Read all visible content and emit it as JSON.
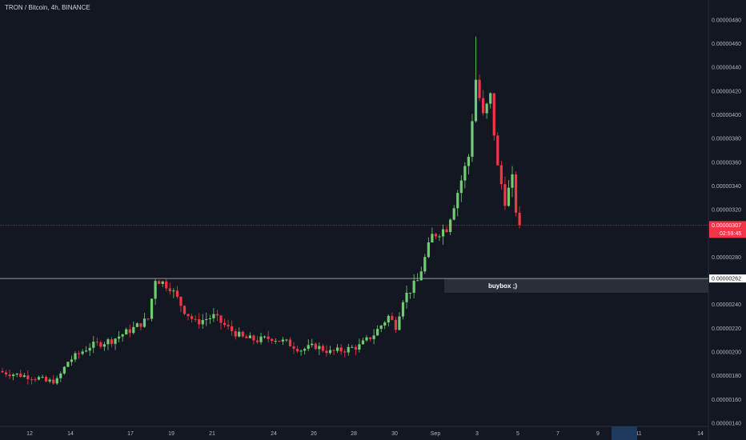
{
  "header": {
    "symbol_title": "TRON / Bitcoin, 4h, BINANCE"
  },
  "colors": {
    "background": "#131722",
    "up": "#6fcc71",
    "down": "#f23645",
    "axis_text": "#b2b5be",
    "grid": "#1c2030",
    "price_line": "#f23645",
    "hline": "#9598a1",
    "zone": "#2a2e39",
    "badge": "#2962ff"
  },
  "chart_data": {
    "type": "candlestick",
    "title": "TRON / Bitcoin, 4h, BINANCE",
    "ylim": [
      1.38e-06,
      4.9e-06
    ],
    "y_ticks": [
      "0.00000140",
      "0.00000160",
      "0.00000180",
      "0.00000200",
      "0.00000220",
      "0.00000240",
      "0.00000280",
      "0.00000300",
      "0.00000320",
      "0.00000340",
      "0.00000360",
      "0.00000380",
      "0.00000400",
      "0.00000420",
      "0.00000440",
      "0.00000460",
      "0.00000480"
    ],
    "x_ticks": [
      "12",
      "14",
      "17",
      "19",
      "21",
      "24",
      "26",
      "28",
      "30",
      "Sep",
      "3",
      "5",
      "7",
      "9",
      "11",
      "14"
    ],
    "candles": [],
    "current_price": {
      "value": "0.00000307",
      "countdown": "02:59:45"
    },
    "horizontal_line": {
      "value": "0.00000262"
    },
    "zone": {
      "label": "buybox ;)",
      "from": 2.5e-06,
      "to": 2.62e-06
    },
    "grid": false
  }
}
